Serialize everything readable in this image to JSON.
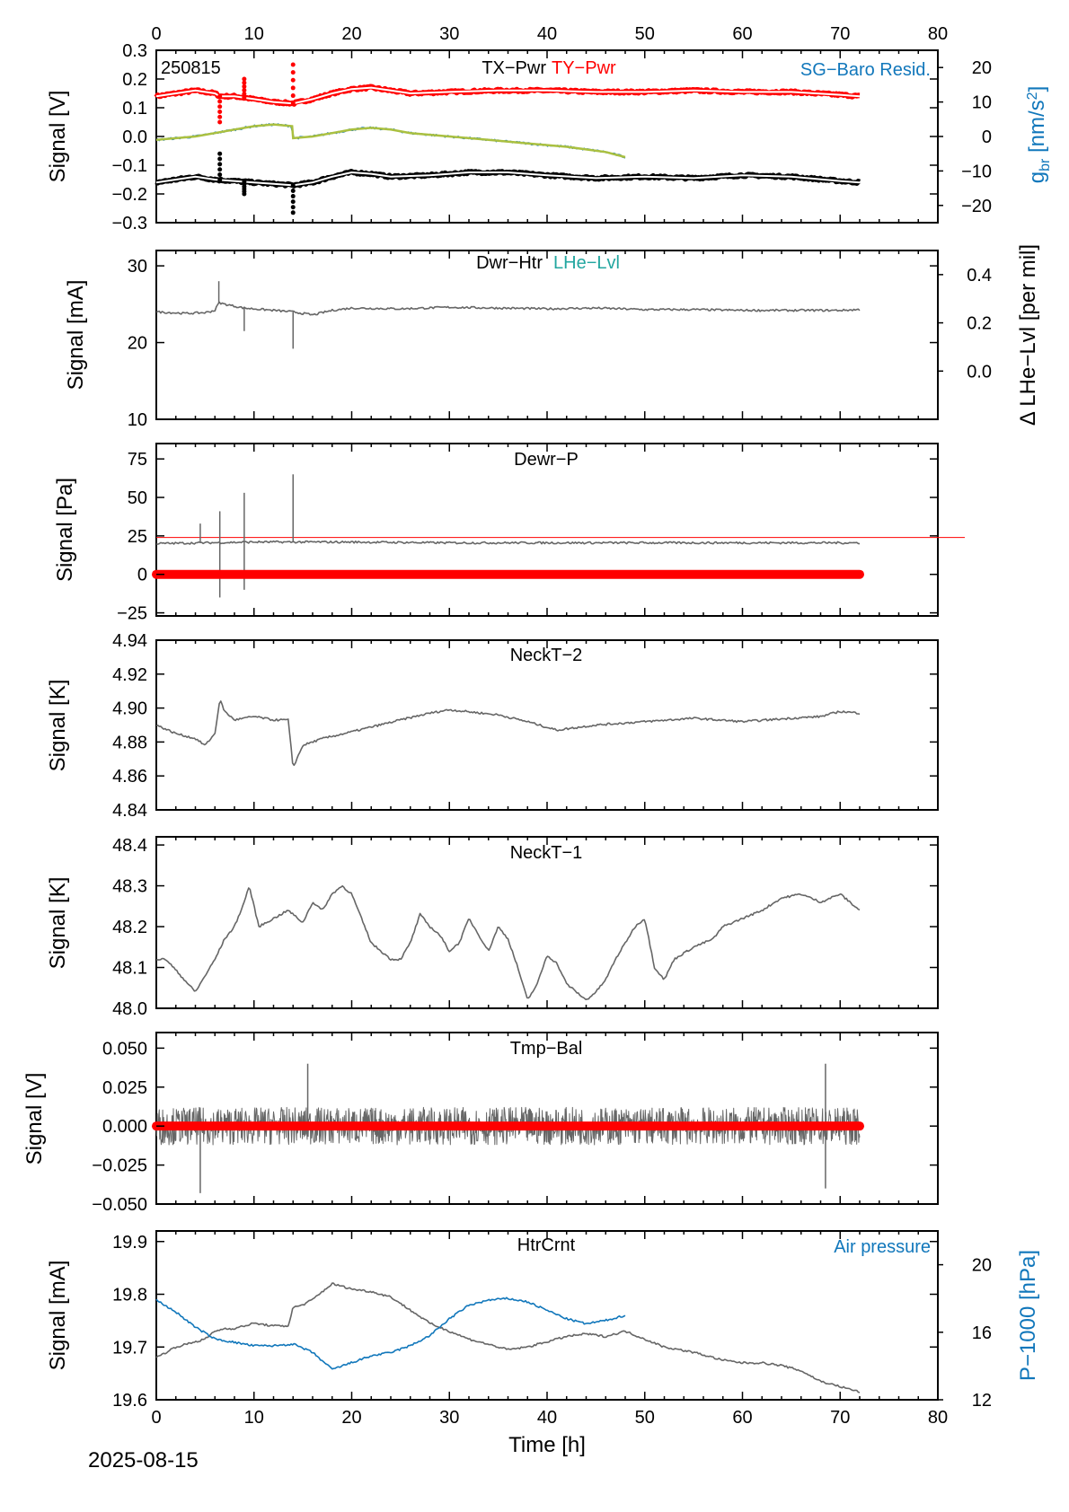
{
  "footer": {
    "date": "2025-08-15",
    "xlabel": "Time [h]"
  },
  "colors": {
    "black": "#000000",
    "red": "#ff0000",
    "blue": "#1177bb",
    "teal": "#22a6a0",
    "gray": "#666666",
    "olive": "#aac040",
    "white": "#ffffff"
  },
  "chart_data": [
    {
      "type": "line",
      "panel": "TX-Pwr / TY-Pwr / SG-Baro Resid.",
      "title": "",
      "station": "250815",
      "xlabel": "Time [h]",
      "ylabel": "Signal [V]",
      "y2label": "g_br [nm/s²]",
      "xlim": [
        0,
        80
      ],
      "ylim": [
        -0.3,
        0.3
      ],
      "y2lim": [
        -25,
        25
      ],
      "xticks": [
        0,
        10,
        20,
        30,
        40,
        50,
        60,
        70,
        80
      ],
      "yticks": [
        "0.3",
        "0.2",
        "0.1",
        "0.0",
        "−0.1",
        "−0.2",
        "−0.3"
      ],
      "y2ticks": [
        "20",
        "10",
        "0",
        "−10",
        "−20"
      ],
      "legend": [
        "TX−Pwr",
        "TY−Pwr",
        "SG−Baro Resid."
      ],
      "series": [
        {
          "name": "TY−Pwr",
          "axis": "left",
          "color": "#ff0000",
          "x": [
            0,
            2,
            4,
            6,
            6.5,
            8,
            10,
            12,
            14,
            16,
            18,
            20,
            22,
            24,
            26,
            30,
            35,
            40,
            45,
            50,
            55,
            60,
            65,
            70,
            72
          ],
          "y": [
            0.14,
            0.15,
            0.16,
            0.15,
            0.14,
            0.14,
            0.13,
            0.12,
            0.115,
            0.13,
            0.15,
            0.165,
            0.17,
            0.16,
            0.15,
            0.155,
            0.16,
            0.16,
            0.155,
            0.155,
            0.16,
            0.155,
            0.155,
            0.145,
            0.14
          ],
          "spikes": [
            [
              6.5,
              0.05
            ],
            [
              9,
              0.2
            ],
            [
              14,
              0.25
            ]
          ]
        },
        {
          "name": "TX−Pwr",
          "axis": "left",
          "color": "#000000",
          "x": [
            0,
            2,
            4,
            6,
            8,
            10,
            12,
            14,
            16,
            18,
            20,
            22,
            24,
            28,
            32,
            36,
            40,
            45,
            50,
            55,
            60,
            65,
            70,
            72
          ],
          "y": [
            -0.16,
            -0.15,
            -0.14,
            -0.15,
            -0.155,
            -0.16,
            -0.165,
            -0.17,
            -0.16,
            -0.14,
            -0.125,
            -0.13,
            -0.14,
            -0.135,
            -0.125,
            -0.125,
            -0.135,
            -0.145,
            -0.14,
            -0.145,
            -0.135,
            -0.14,
            -0.155,
            -0.16
          ],
          "spikes": [
            [
              6.5,
              -0.06
            ],
            [
              9,
              -0.2
            ],
            [
              14,
              -0.265
            ]
          ]
        },
        {
          "name": "SG−Baro Resid.",
          "axis": "right",
          "color": "#1177bb",
          "x": [
            0,
            2,
            4,
            6,
            8,
            10,
            12,
            13.9,
            14,
            16,
            18,
            20,
            22,
            24,
            26,
            30,
            34,
            38,
            42,
            46,
            48
          ],
          "y": [
            -1,
            -0.5,
            0,
            1,
            2,
            3,
            3.5,
            3,
            -0.5,
            0,
            1,
            2,
            2.5,
            2,
            1,
            0,
            -1,
            -2,
            -3,
            -4.5,
            -6
          ]
        }
      ]
    },
    {
      "type": "line",
      "panel": "Dwr-Htr / LHe-Lvl",
      "title": "",
      "xlabel": "Time [h]",
      "ylabel": "Signal [mA]",
      "y2label": "Δ LHe−Lvl [per mil]",
      "xlim": [
        0,
        80
      ],
      "ylim": [
        10,
        32
      ],
      "y2lim": [
        -0.2,
        0.5
      ],
      "yticks": [
        "30",
        "20",
        "10"
      ],
      "y2ticks": [
        "0.4",
        "0.2",
        "0.0"
      ],
      "legend": [
        "Dwr−Htr",
        "LHe−Lvl"
      ],
      "series": [
        {
          "name": "Dwr−Htr",
          "color": "#666666",
          "x": [
            0,
            3,
            5,
            6,
            6.4,
            7,
            9,
            12,
            14,
            16,
            18,
            20,
            25,
            30,
            35,
            40,
            45,
            50,
            55,
            60,
            65,
            70,
            72
          ],
          "y": [
            24,
            23.8,
            23.9,
            24.2,
            25.2,
            25,
            24.5,
            24.2,
            24,
            23.6,
            24.2,
            24.5,
            24.4,
            24.6,
            24.5,
            24.4,
            24.5,
            24.3,
            24.3,
            24.2,
            24.2,
            24.2,
            24.3
          ],
          "spikes": [
            [
              6.4,
              28
            ],
            [
              9,
              21.5
            ],
            [
              14,
              19.2
            ]
          ]
        }
      ]
    },
    {
      "type": "line",
      "panel": "Dewr-P",
      "title": "",
      "xlabel": "Time [h]",
      "ylabel": "Signal [Pa]",
      "xlim": [
        0,
        80
      ],
      "ylim": [
        -27,
        85
      ],
      "yticks": [
        "75",
        "50",
        "25",
        "0",
        "−25"
      ],
      "legend": [
        "Dewr−P"
      ],
      "threshold": 24,
      "series": [
        {
          "name": "Dewr−P",
          "color": "#666666",
          "x": [
            0,
            10,
            20,
            30,
            40,
            50,
            60,
            70,
            72
          ],
          "y": [
            20,
            21,
            21,
            20.5,
            20.5,
            20.5,
            20.5,
            20.5,
            20.5
          ],
          "spikes": [
            [
              4.5,
              33
            ],
            [
              6.5,
              41
            ],
            [
              6.5,
              -15
            ],
            [
              9,
              53
            ],
            [
              9,
              -10
            ],
            [
              14,
              65
            ]
          ]
        },
        {
          "name": "zero",
          "color": "#ff0000",
          "x": [
            0,
            72
          ],
          "y": [
            0,
            0
          ]
        }
      ]
    },
    {
      "type": "line",
      "panel": "NeckT-2",
      "title": "",
      "xlabel": "Time [h]",
      "ylabel": "Signal [K]",
      "xlim": [
        0,
        80
      ],
      "ylim": [
        4.84,
        4.94
      ],
      "yticks": [
        "4.94",
        "4.92",
        "4.90",
        "4.88",
        "4.86",
        "4.84"
      ],
      "legend": [
        "NeckT−2"
      ],
      "series": [
        {
          "name": "NeckT−2",
          "color": "#666666",
          "x": [
            0,
            2,
            4,
            5,
            6,
            6.5,
            7,
            8,
            10,
            12,
            13.5,
            14,
            15,
            17,
            20,
            25,
            28,
            30,
            35,
            38,
            41,
            45,
            50,
            55,
            60,
            65,
            68,
            70,
            72
          ],
          "y": [
            4.89,
            4.885,
            4.882,
            4.878,
            4.885,
            4.905,
            4.898,
            4.893,
            4.895,
            4.893,
            4.893,
            4.865,
            4.878,
            4.882,
            4.886,
            4.893,
            4.897,
            4.899,
            4.896,
            4.892,
            4.887,
            4.89,
            4.892,
            4.894,
            4.892,
            4.894,
            4.895,
            4.898,
            4.897
          ]
        }
      ]
    },
    {
      "type": "line",
      "panel": "NeckT-1",
      "title": "",
      "xlabel": "Time [h]",
      "ylabel": "Signal [K]",
      "xlim": [
        0,
        80
      ],
      "ylim": [
        48.0,
        48.42
      ],
      "yticks": [
        "48.4",
        "48.3",
        "48.2",
        "48.1",
        "48.0"
      ],
      "legend": [
        "NeckT−1"
      ],
      "series": [
        {
          "name": "NeckT−1",
          "color": "#666666",
          "x": [
            0,
            1,
            2.5,
            4,
            5,
            6,
            7,
            8,
            9,
            9.5,
            10.5,
            12,
            13.5,
            15,
            16,
            17,
            18,
            19,
            20,
            21,
            22,
            24,
            25,
            26,
            27,
            28,
            29,
            30,
            31,
            32,
            33,
            34,
            35,
            36,
            37,
            38,
            39,
            40,
            41,
            42,
            43,
            44,
            45,
            46,
            47,
            48,
            49,
            50,
            51,
            52,
            53,
            55,
            57,
            58,
            60,
            62,
            64,
            66,
            68,
            69,
            70,
            71,
            72
          ],
          "y": [
            48.12,
            48.12,
            48.08,
            48.04,
            48.08,
            48.12,
            48.17,
            48.2,
            48.26,
            48.3,
            48.2,
            48.22,
            48.24,
            48.21,
            48.26,
            48.24,
            48.28,
            48.3,
            48.28,
            48.22,
            48.16,
            48.12,
            48.12,
            48.16,
            48.23,
            48.2,
            48.18,
            48.14,
            48.16,
            48.22,
            48.18,
            48.14,
            48.2,
            48.17,
            48.1,
            48.02,
            48.06,
            48.13,
            48.11,
            48.06,
            48.04,
            48.02,
            48.04,
            48.07,
            48.12,
            48.16,
            48.2,
            48.22,
            48.1,
            48.07,
            48.12,
            48.15,
            48.17,
            48.2,
            48.22,
            48.24,
            48.27,
            48.28,
            48.26,
            48.27,
            48.28,
            48.26,
            48.24
          ]
        }
      ]
    },
    {
      "type": "line",
      "panel": "Tmp-Bal",
      "title": "",
      "xlabel": "Time [h]",
      "ylabel": "Signal [V]",
      "xlim": [
        0,
        80
      ],
      "ylim": [
        -0.05,
        0.06
      ],
      "yticks": [
        "0.050",
        "0.025",
        "0.000",
        "−0.025",
        "−0.050"
      ],
      "legend": [
        "Tmp−Bal"
      ],
      "series": [
        {
          "name": "Tmp−Bal",
          "color": "#666666",
          "x": [
            0,
            72
          ],
          "y": [
            0,
            0
          ],
          "noise_amplitude": 0.012,
          "spikes": [
            [
              4.5,
              -0.043
            ],
            [
              15.5,
              0.04
            ],
            [
              68.5,
              -0.04
            ],
            [
              68.5,
              0.04
            ]
          ]
        },
        {
          "name": "zero",
          "color": "#ff0000",
          "x": [
            0,
            72
          ],
          "y": [
            0,
            0
          ]
        }
      ]
    },
    {
      "type": "line",
      "panel": "HtrCrnt",
      "title": "",
      "xlabel": "Time [h]",
      "ylabel": "Signal [mA]",
      "y2label": "P−1000 [hPa]",
      "xlim": [
        0,
        80
      ],
      "ylim": [
        19.6,
        19.92
      ],
      "y2lim": [
        12,
        22
      ],
      "xticks": [
        0,
        10,
        20,
        30,
        40,
        50,
        60,
        70,
        80
      ],
      "yticks": [
        "19.9",
        "19.8",
        "19.7",
        "19.6"
      ],
      "y2ticks": [
        "20",
        "16",
        "12"
      ],
      "legend": [
        "HtrCrnt",
        "Air pressure"
      ],
      "series": [
        {
          "name": "HtrCrnt",
          "axis": "left",
          "color": "#666666",
          "x": [
            0,
            2,
            4,
            5,
            6,
            7,
            8,
            10,
            12,
            13.5,
            14,
            15,
            16,
            18,
            20,
            22,
            24,
            26,
            28,
            30,
            32,
            34,
            36,
            38,
            40,
            42,
            44,
            46,
            48,
            50,
            52,
            55,
            58,
            60,
            62,
            64,
            66,
            68,
            70,
            72
          ],
          "y": [
            19.68,
            19.7,
            19.71,
            19.715,
            19.73,
            19.735,
            19.735,
            19.745,
            19.74,
            19.74,
            19.775,
            19.78,
            19.79,
            19.82,
            19.81,
            19.805,
            19.795,
            19.77,
            19.745,
            19.73,
            19.715,
            19.705,
            19.695,
            19.7,
            19.71,
            19.72,
            19.725,
            19.72,
            19.73,
            19.715,
            19.7,
            19.69,
            19.675,
            19.67,
            19.67,
            19.665,
            19.655,
            19.635,
            19.625,
            19.615
          ]
        },
        {
          "name": "Air pressure",
          "axis": "right",
          "color": "#1177bb",
          "x": [
            0,
            2,
            4,
            6,
            8,
            10,
            12,
            14,
            16,
            18,
            20,
            22,
            24,
            26,
            28,
            30,
            32,
            34,
            36,
            38,
            40,
            42,
            44,
            46,
            48
          ],
          "y": [
            17.9,
            17.2,
            16.3,
            15.6,
            15.4,
            15.2,
            15.2,
            15.3,
            14.8,
            13.8,
            14.2,
            14.6,
            14.8,
            15.2,
            15.8,
            16.8,
            17.6,
            17.9,
            18.0,
            17.8,
            17.3,
            16.8,
            16.5,
            16.7,
            17.0
          ]
        }
      ]
    }
  ]
}
